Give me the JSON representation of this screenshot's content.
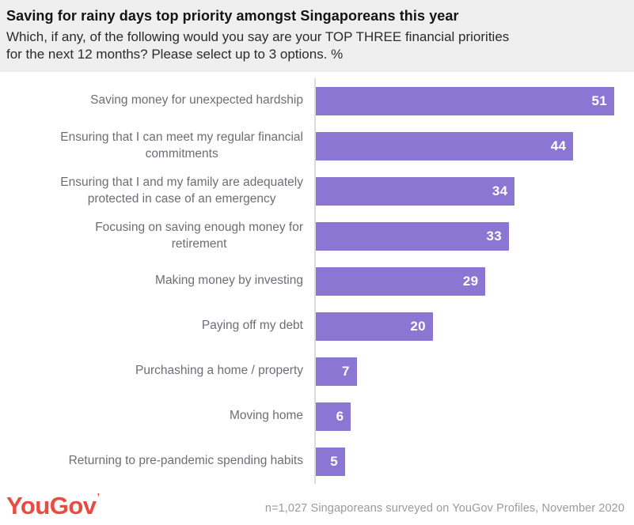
{
  "header": {
    "title": "Saving for rainy days top priority amongst Singaporeans this year",
    "subtitle": "Which, if any, of the following would you say are your TOP THREE financial priorities\nfor the next 12 months? Please select up to 3 options. %"
  },
  "chart_data": {
    "type": "bar",
    "orientation": "horizontal",
    "title": "Saving for rainy days top priority amongst Singaporeans this year",
    "xlabel": "",
    "ylabel": "",
    "unit": "%",
    "xlim": [
      0,
      54
    ],
    "grid": false,
    "legend": false,
    "bar_color": "#8b76d3",
    "axis_line_color": "#dcdcdc",
    "value_label_color": "#ffffff",
    "categories": [
      "Saving money for unexpected hardship",
      "Ensuring that I can meet my regular financial\ncommitments",
      "Ensuring that I and my family are adequately\nprotected in case of an emergency",
      "Focusing on saving enough money for\nretirement",
      "Making money by investing",
      "Paying off my debt",
      "Purchashing a home / property",
      "Moving home",
      "Returning to pre-pandemic spending habits"
    ],
    "values": [
      51,
      44,
      34,
      33,
      29,
      20,
      7,
      6,
      5
    ]
  },
  "footer": {
    "logo_text": "YouGov",
    "logo_mark": "’",
    "logo_color": "#ea4b3f",
    "source_note": "n=1,027 Singaporeans surveyed on YouGov Profiles, November 2020"
  }
}
